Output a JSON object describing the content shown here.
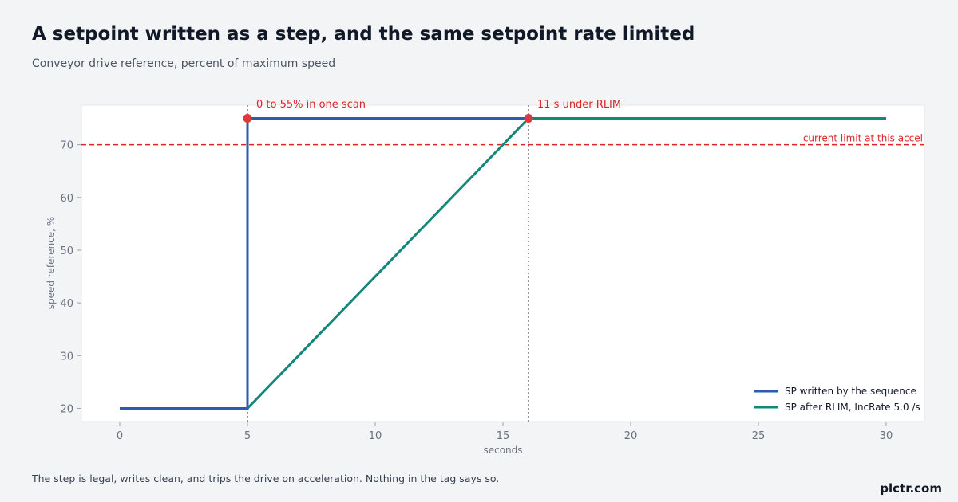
{
  "header": {
    "title": "A setpoint written as a step, and the same setpoint rate limited",
    "subtitle": "Conveyor drive reference, percent of maximum speed"
  },
  "footer": {
    "note": "The step is legal, writes clean, and trips the drive on acceleration. Nothing in the tag says so.",
    "brand": "plctr.com"
  },
  "chart_data": {
    "type": "line",
    "xlabel": "seconds",
    "ylabel": "speed reference, %",
    "xlim": [
      -1.5,
      31.5
    ],
    "ylim": [
      17.5,
      77.5
    ],
    "x_ticks": [
      0,
      5,
      10,
      15,
      20,
      25,
      30
    ],
    "y_ticks": [
      20,
      30,
      40,
      50,
      60,
      70
    ],
    "grid": false,
    "legend_position": "bottom-right",
    "series": [
      {
        "name": "SP written by the sequence",
        "color": "#2a5db0",
        "points": [
          [
            0,
            20
          ],
          [
            5,
            20
          ],
          [
            5,
            75
          ],
          [
            16,
            75
          ]
        ]
      },
      {
        "name": "SP after RLIM, IncRate 5.0 /s",
        "color": "#12877a",
        "points": [
          [
            0,
            20
          ],
          [
            5,
            20
          ],
          [
            16,
            75
          ],
          [
            30,
            75
          ]
        ]
      }
    ],
    "reference_line": {
      "y": 70,
      "label": "current limit at this accel",
      "color": "#dc2626"
    },
    "markers": [
      {
        "x": 5,
        "y": 75,
        "color": "#dc3b3b"
      },
      {
        "x": 16,
        "y": 75,
        "color": "#dc3b3b"
      }
    ],
    "vertical_lines": [
      {
        "x": 5,
        "color": "#555555"
      },
      {
        "x": 16,
        "color": "#555555"
      }
    ],
    "annotations": [
      {
        "x": 5,
        "text": "0 to 55% in one scan"
      },
      {
        "x": 16,
        "text": "11 s under RLIM"
      }
    ]
  }
}
